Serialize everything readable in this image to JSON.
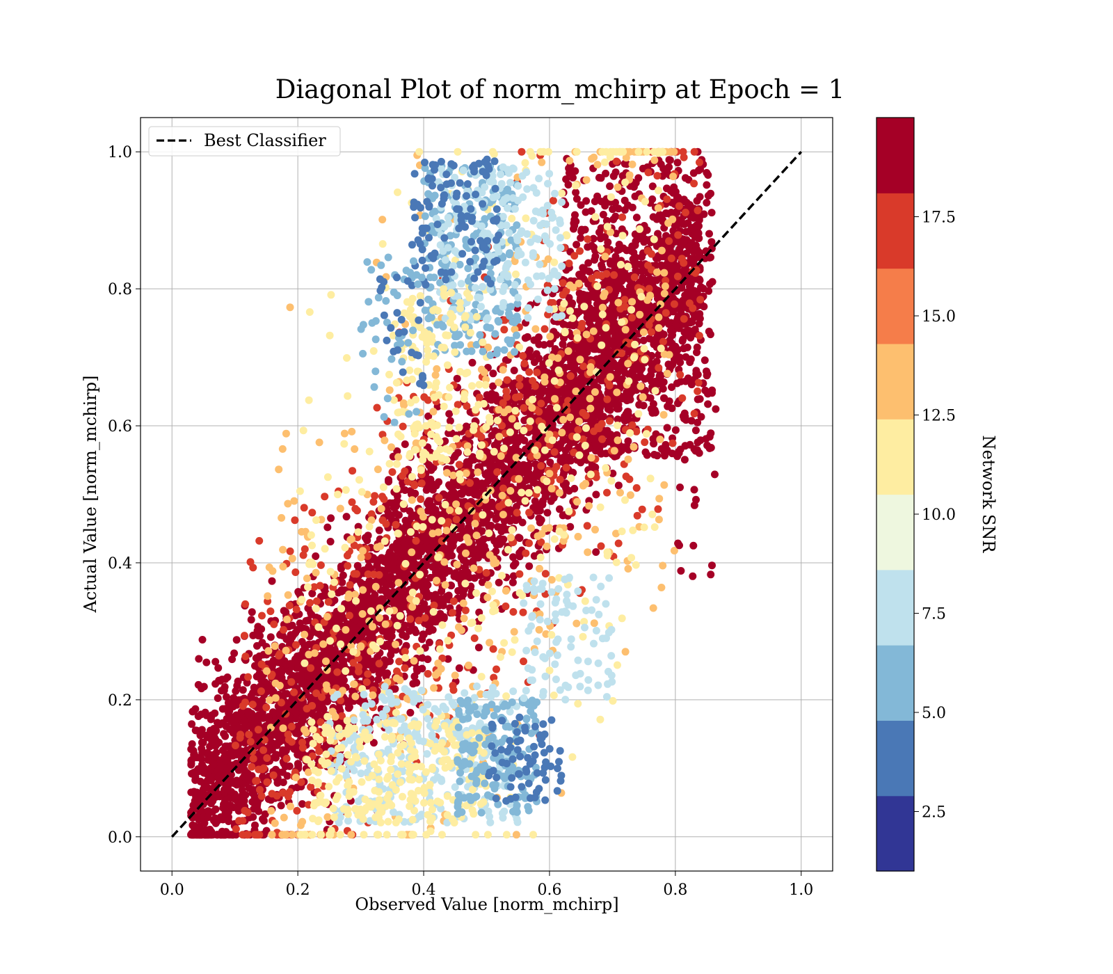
{
  "chart_data": {
    "type": "scatter",
    "title": "Diagonal Plot of norm_mchirp at Epoch = 1",
    "xlabel": "Observed Value [norm_mchirp]",
    "ylabel": "Actual Value [norm_mchirp]",
    "xlim": [
      -0.05,
      1.05
    ],
    "ylim": [
      -0.05,
      1.05
    ],
    "x_ticks": [
      "0.0",
      "0.2",
      "0.4",
      "0.6",
      "0.8",
      "1.0"
    ],
    "y_ticks": [
      "0.0",
      "0.2",
      "0.4",
      "0.6",
      "0.8",
      "1.0"
    ],
    "grid": true,
    "legend": {
      "placement": "top-left",
      "entries": [
        {
          "label": "Best Classifier"
        }
      ]
    },
    "reference_line": {
      "x": [
        0.0,
        1.0
      ],
      "y": [
        0.0,
        1.0
      ],
      "style": "dashed",
      "color": "#000000"
    },
    "colorbar": {
      "label": "Network SNR",
      "range": [
        1.0,
        20.0
      ],
      "ticks": [
        "2.5",
        "5.0",
        "7.5",
        "10.0",
        "12.5",
        "15.0",
        "17.5"
      ],
      "colors": [
        "#313695",
        "#4a78b6",
        "#83b8d7",
        "#bfe1ed",
        "#eef7df",
        "#feeda1",
        "#fdbf6f",
        "#f57d4a",
        "#d93a2a",
        "#a50026"
      ]
    },
    "point_clouds": [
      {
        "snr": 18.8,
        "mode": "diag",
        "count": 4200,
        "x_range": [
          0.03,
          0.84
        ],
        "spread": 0.075,
        "offset": 0.01
      },
      {
        "snr": 18.8,
        "mode": "box",
        "count": 550,
        "x_range": [
          0.62,
          0.86
        ],
        "y_range": [
          0.55,
          0.99
        ]
      },
      {
        "snr": 16.5,
        "mode": "diag",
        "count": 550,
        "x_range": [
          0.1,
          0.84
        ],
        "spread": 0.16,
        "offset": 0.0
      },
      {
        "snr": 14.0,
        "mode": "diag",
        "count": 450,
        "x_range": [
          0.15,
          0.8
        ],
        "spread": 0.22,
        "offset": 0.0
      },
      {
        "snr": 11.5,
        "mode": "diag",
        "count": 350,
        "x_range": [
          0.2,
          0.78
        ],
        "spread": 0.27,
        "offset": 0.0
      },
      {
        "snr": 8.5,
        "mode": "box",
        "count": 300,
        "x_range": [
          0.25,
          0.55
        ],
        "y_range": [
          0.02,
          0.22
        ]
      },
      {
        "snr": 11.5,
        "mode": "box",
        "count": 230,
        "x_range": [
          0.22,
          0.5
        ],
        "y_range": [
          0.02,
          0.17
        ]
      },
      {
        "snr": 6.0,
        "mode": "box",
        "count": 230,
        "x_range": [
          0.4,
          0.55
        ],
        "y_range": [
          0.7,
          0.98
        ]
      },
      {
        "snr": 8.5,
        "mode": "box",
        "count": 200,
        "x_range": [
          0.42,
          0.62
        ],
        "y_range": [
          0.75,
          0.98
        ]
      },
      {
        "snr": 3.5,
        "mode": "box",
        "count": 110,
        "x_range": [
          0.38,
          0.52
        ],
        "y_range": [
          0.8,
          0.99
        ]
      },
      {
        "snr": 6.0,
        "mode": "box",
        "count": 160,
        "x_range": [
          0.45,
          0.58
        ],
        "y_range": [
          0.03,
          0.2
        ]
      },
      {
        "snr": 3.5,
        "mode": "box",
        "count": 70,
        "x_range": [
          0.5,
          0.62
        ],
        "y_range": [
          0.05,
          0.18
        ]
      },
      {
        "snr": 11.5,
        "mode": "box",
        "count": 120,
        "x_range": [
          0.35,
          0.5
        ],
        "y_range": [
          0.55,
          0.8
        ]
      },
      {
        "snr": 8.5,
        "mode": "box",
        "count": 90,
        "x_range": [
          0.55,
          0.7
        ],
        "y_range": [
          0.2,
          0.38
        ]
      },
      {
        "snr": 6.0,
        "mode": "box",
        "count": 40,
        "x_range": [
          0.3,
          0.4
        ],
        "y_range": [
          0.6,
          0.85
        ]
      },
      {
        "snr": 3.5,
        "mode": "box",
        "count": 25,
        "x_range": [
          0.33,
          0.4
        ],
        "y_range": [
          0.65,
          0.82
        ]
      },
      {
        "snr": 18.8,
        "mode": "box",
        "count": 25,
        "x_range": [
          0.8,
          0.87
        ],
        "y_range": [
          0.38,
          0.7
        ]
      }
    ]
  }
}
